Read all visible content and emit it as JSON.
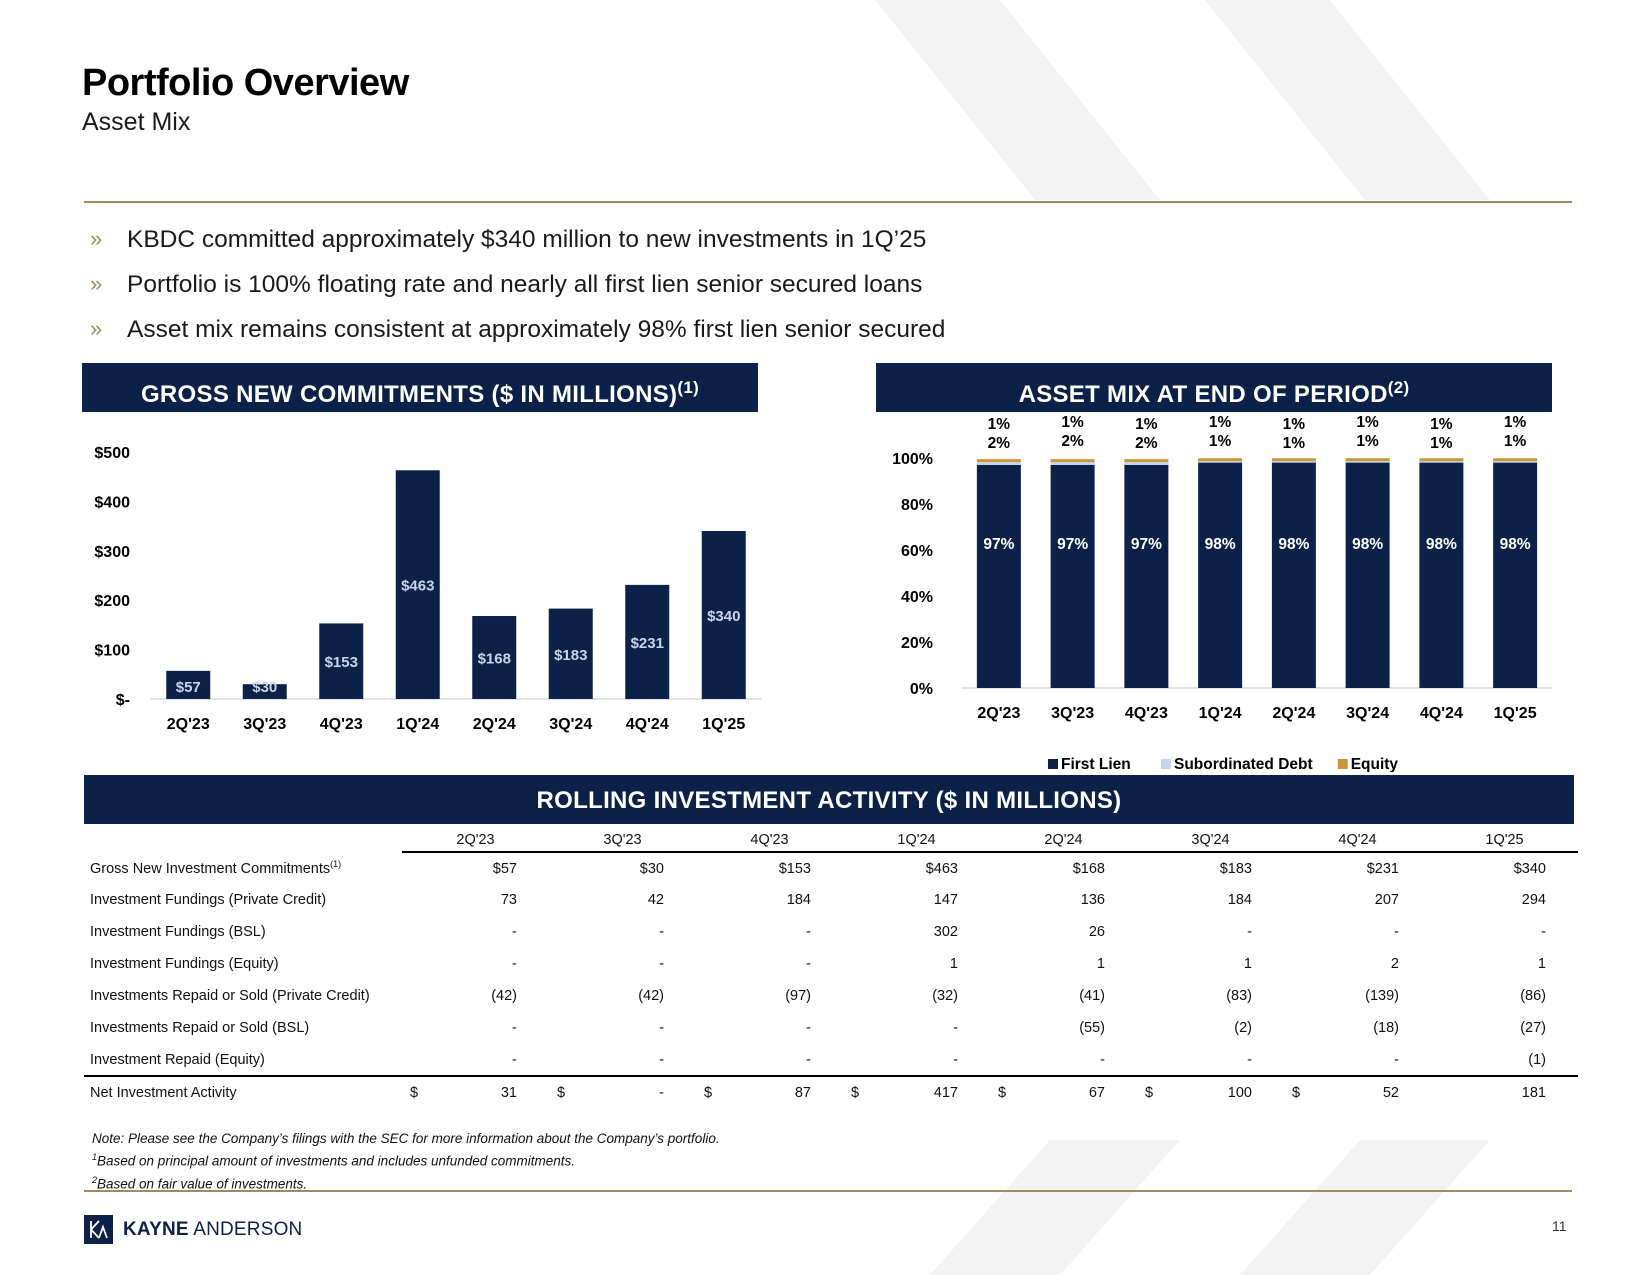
{
  "header": {
    "title": "Portfolio Overview",
    "subtitle": "Asset Mix"
  },
  "bullets": [
    "KBDC committed approximately $340 million to new investments in 1Q’25",
    "Portfolio is 100% floating rate and nearly all first lien senior secured loans",
    "Asset mix remains consistent at approximately 98% first lien senior secured"
  ],
  "bullet_mark": "»",
  "banners": {
    "commitments": "GROSS NEW COMMITMENTS ($ IN MILLIONS)",
    "commitments_note": "(1)",
    "asset_mix": "ASSET MIX AT END OF PERIOD",
    "asset_mix_note": "(2)",
    "rolling": "ROLLING INVESTMENT ACTIVITY ($ IN MILLIONS)"
  },
  "colors": {
    "navy": "#0c2147",
    "gold": "#a48a5a",
    "equity": "#c9973a",
    "sub_debt": "#c6d5ea"
  },
  "chart_data": [
    {
      "type": "bar",
      "title": "GROSS NEW COMMITMENTS ($ IN MILLIONS)",
      "categories": [
        "2Q'23",
        "3Q'23",
        "4Q'23",
        "1Q'24",
        "2Q'24",
        "3Q'24",
        "4Q'24",
        "1Q'25"
      ],
      "values": [
        57,
        30,
        153,
        463,
        168,
        183,
        231,
        340
      ],
      "data_labels": [
        "$57",
        "$30",
        "$153",
        "$463",
        "$168",
        "$183",
        "$231",
        "$340"
      ],
      "ylim": [
        0,
        500
      ],
      "yticks": [
        0,
        100,
        200,
        300,
        400,
        500
      ],
      "ytick_labels": [
        "$-",
        "$100",
        "$200",
        "$300",
        "$400",
        "$500"
      ],
      "xlabel": "",
      "ylabel": ""
    },
    {
      "type": "bar",
      "stacked": true,
      "title": "ASSET MIX AT END OF PERIOD",
      "categories": [
        "2Q'23",
        "3Q'23",
        "4Q'23",
        "1Q'24",
        "2Q'24",
        "3Q'24",
        "4Q'24",
        "1Q'25"
      ],
      "series": [
        {
          "name": "First Lien",
          "values": [
            97,
            97,
            97,
            98,
            98,
            98,
            98,
            98
          ]
        },
        {
          "name": "Subordinated Debt",
          "values": [
            2,
            2,
            2,
            1,
            1,
            1,
            1,
            1
          ]
        },
        {
          "name": "Equity",
          "values": [
            1,
            1,
            1,
            1,
            1,
            1,
            1,
            1
          ]
        }
      ],
      "ylim": [
        0,
        100
      ],
      "yticks": [
        0,
        20,
        40,
        60,
        80,
        100
      ],
      "ytick_labels": [
        "0%",
        "20%",
        "40%",
        "60%",
        "80%",
        "100%"
      ],
      "legend_position": "bottom",
      "xlabel": "",
      "ylabel": ""
    }
  ],
  "table": {
    "columns": [
      "2Q'23",
      "3Q'23",
      "4Q'23",
      "1Q'24",
      "2Q'24",
      "3Q'24",
      "4Q'24",
      "1Q'25"
    ],
    "rows": [
      {
        "label": "Gross New Investment Commitments",
        "note": "(1)",
        "values": [
          "$57",
          "$30",
          "$153",
          "$463",
          "$168",
          "$183",
          "$231",
          "$340"
        ]
      },
      {
        "label": "Investment Fundings (Private Credit)",
        "note": "",
        "values": [
          "73",
          "42",
          "184",
          "147",
          "136",
          "184",
          "207",
          "294"
        ]
      },
      {
        "label": "Investment Fundings (BSL)",
        "note": "",
        "values": [
          "-",
          "-",
          "-",
          "302",
          "26",
          "-",
          "-",
          "-"
        ]
      },
      {
        "label": "Investment Fundings (Equity)",
        "note": "",
        "values": [
          "-",
          "-",
          "-",
          "1",
          "1",
          "1",
          "2",
          "1"
        ]
      },
      {
        "label": "Investments Repaid or Sold (Private Credit)",
        "note": "",
        "values": [
          "(42)",
          "(42)",
          "(97)",
          "(32)",
          "(41)",
          "(83)",
          "(139)",
          "(86)"
        ]
      },
      {
        "label": "Investments Repaid or Sold (BSL)",
        "note": "",
        "values": [
          "-",
          "-",
          "-",
          "-",
          "(55)",
          "(2)",
          "(18)",
          "(27)"
        ]
      },
      {
        "label": "Investment Repaid (Equity)",
        "note": "",
        "values": [
          "-",
          "-",
          "-",
          "-",
          "-",
          "-",
          "-",
          "(1)"
        ]
      }
    ],
    "total": {
      "label": "Net Investment Activity",
      "currency": "$",
      "values": [
        "31",
        "-",
        "87",
        "417",
        "67",
        "100",
        "52",
        "181"
      ]
    }
  },
  "notes": {
    "note": "Note:  Please see the Company’s filings with the SEC for more information about the Company’s portfolio.",
    "fn1_mark": "1",
    "fn1": "Based on principal amount of investments and includes unfunded commitments.",
    "fn2_mark": "2",
    "fn2": "Based on fair value of investments."
  },
  "footer": {
    "logo_bold": "KAYNE",
    "logo_rest": " ANDERSON",
    "page_number": "11"
  }
}
